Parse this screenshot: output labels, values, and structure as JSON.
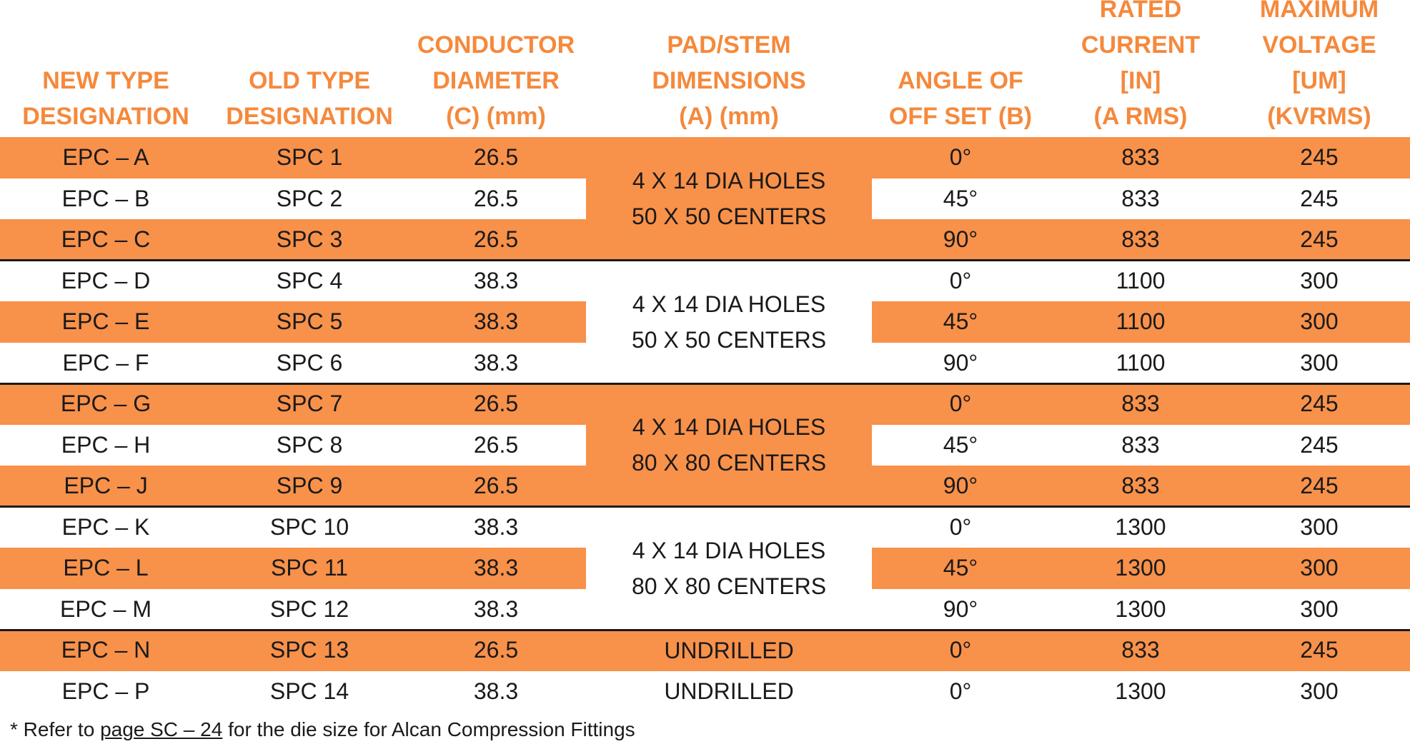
{
  "headers": [
    [
      "NEW TYPE",
      "DESIGNATION"
    ],
    [
      "OLD TYPE",
      "DESIGNATION"
    ],
    [
      "CONDUCTOR",
      "DIAMETER",
      "(C) (mm)"
    ],
    [
      "PAD/STEM",
      "DIMENSIONS",
      "(A) (mm)"
    ],
    [
      "ANGLE OF",
      "OFF SET (B)"
    ],
    [
      "RATED",
      "CURRENT",
      "[IN]",
      "(A RMS)"
    ],
    [
      "MAXIMUM",
      "VOLTAGE",
      "[UM]",
      "(KVRMS)"
    ]
  ],
  "rows": [
    {
      "new": "EPC – A",
      "old": "SPC 1",
      "dia": "26.5",
      "angle": "0°",
      "current": "833",
      "voltage": "245"
    },
    {
      "new": "EPC – B",
      "old": "SPC 2",
      "dia": "26.5",
      "angle": "45°",
      "current": "833",
      "voltage": "245"
    },
    {
      "new": "EPC – C",
      "old": "SPC 3",
      "dia": "26.5",
      "angle": "90°",
      "current": "833",
      "voltage": "245"
    },
    {
      "new": "EPC – D",
      "old": "SPC 4",
      "dia": "38.3",
      "angle": "0°",
      "current": "1100",
      "voltage": "300"
    },
    {
      "new": "EPC – E",
      "old": "SPC 5",
      "dia": "38.3",
      "angle": "45°",
      "current": "1100",
      "voltage": "300"
    },
    {
      "new": "EPC – F",
      "old": "SPC 6",
      "dia": "38.3",
      "angle": "90°",
      "current": "1100",
      "voltage": "300"
    },
    {
      "new": "EPC – G",
      "old": "SPC 7",
      "dia": "26.5",
      "angle": "0°",
      "current": "833",
      "voltage": "245"
    },
    {
      "new": "EPC – H",
      "old": "SPC 8",
      "dia": "26.5",
      "angle": "45°",
      "current": "833",
      "voltage": "245"
    },
    {
      "new": "EPC – J",
      "old": "SPC 9",
      "dia": "26.5",
      "angle": "90°",
      "current": "833",
      "voltage": "245"
    },
    {
      "new": "EPC – K",
      "old": "SPC 10",
      "dia": "38.3",
      "angle": "0°",
      "current": "1300",
      "voltage": "300"
    },
    {
      "new": "EPC – L",
      "old": "SPC 11",
      "dia": "38.3",
      "angle": "45°",
      "current": "1300",
      "voltage": "300"
    },
    {
      "new": "EPC – M",
      "old": "SPC 12",
      "dia": "38.3",
      "angle": "90°",
      "current": "1300",
      "voltage": "300"
    },
    {
      "new": "EPC – N",
      "old": "SPC 13",
      "dia": "26.5",
      "angle": "0°",
      "current": "833",
      "voltage": "245"
    },
    {
      "new": "EPC – P",
      "old": "SPC 14",
      "dia": "38.3",
      "angle": "0°",
      "current": "1300",
      "voltage": "300"
    }
  ],
  "pad_groups": [
    {
      "lines": [
        "4 X 14 DIA HOLES",
        "50 X 50 CENTERS"
      ]
    },
    {
      "lines": [
        "4 X 14 DIA HOLES",
        "50 X 50 CENTERS"
      ]
    },
    {
      "lines": [
        "4 X 14 DIA HOLES",
        "80 X 80 CENTERS"
      ]
    },
    {
      "lines": [
        "4 X 14 DIA HOLES",
        "80 X 80 CENTERS"
      ]
    },
    {
      "lines": [
        "UNDRILLED"
      ]
    },
    {
      "lines": [
        "UNDRILLED"
      ]
    }
  ],
  "footnote": {
    "prefix": "* Refer to ",
    "link": "page SC – 24",
    "suffix": " for the die size for Alcan Compression Fittings"
  },
  "colors": {
    "accent": "#f5893c",
    "band": "#f8914a",
    "text": "#1a1a1a"
  }
}
